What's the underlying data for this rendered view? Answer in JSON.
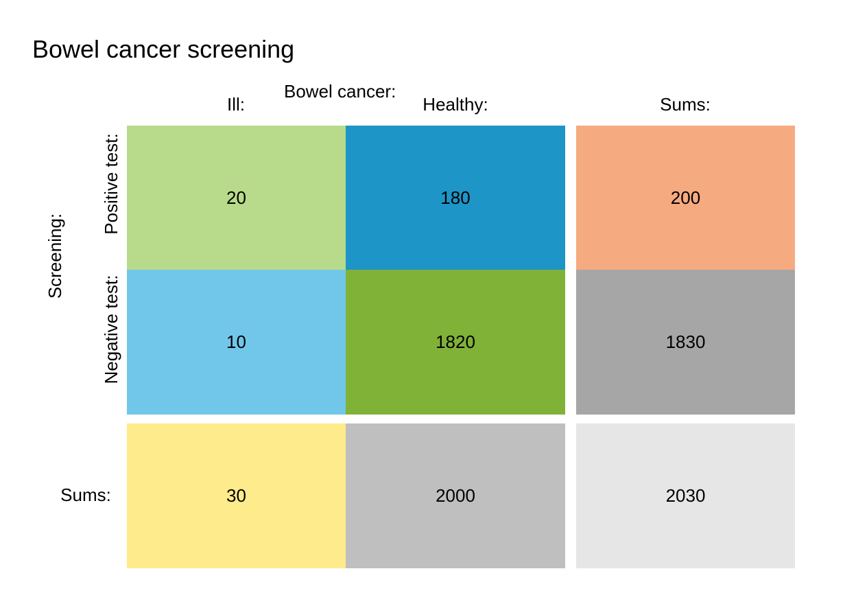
{
  "title": "Bowel cancer screening",
  "col_group_label": "Bowel cancer:",
  "row_group_label": "Screening:",
  "col_labels": [
    "Ill:",
    "Healthy:",
    "Sums:"
  ],
  "row_labels": [
    "Positive test:",
    "Negative test:",
    "Sums:"
  ],
  "colors": {
    "ill_positive": "#b8da8b",
    "healthy_positive": "#1e95c7",
    "sum_positive": "#f6aa80",
    "ill_negative": "#71c7ea",
    "healthy_negative": "#80b238",
    "sum_negative": "#a6a6a6",
    "sum_ill": "#feeb8c",
    "sum_healthy": "#bfbfbf",
    "sum_total": "#e6e6e6"
  },
  "chart_data": {
    "type": "table",
    "title": "Bowel cancer screening",
    "col_group_label": "Bowel cancer:",
    "row_group_label": "Screening:",
    "columns": [
      "Ill:",
      "Healthy:",
      "Sums:"
    ],
    "rows": [
      "Positive test:",
      "Negative test:",
      "Sums:"
    ],
    "values": [
      [
        20,
        180,
        200
      ],
      [
        10,
        1820,
        1830
      ],
      [
        30,
        2000,
        2030
      ]
    ],
    "cells": {
      "ill_positive": "20",
      "healthy_positive": "180",
      "sum_positive": "200",
      "ill_negative": "10",
      "healthy_negative": "1820",
      "sum_negative": "1830",
      "sum_ill": "30",
      "sum_healthy": "2000",
      "sum_total": "2030"
    }
  }
}
